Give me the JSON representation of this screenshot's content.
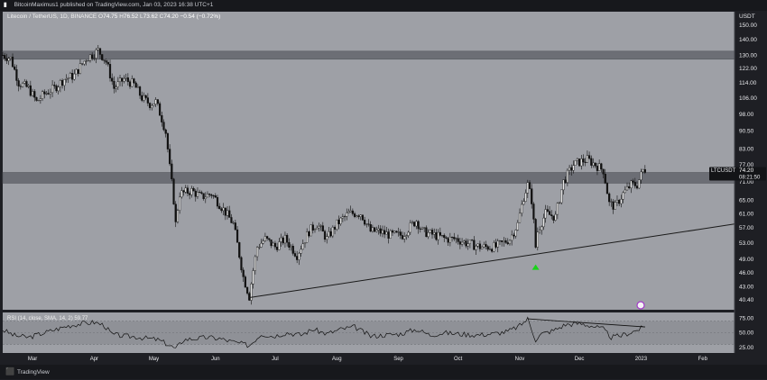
{
  "header": {
    "publisher_line": "BitcoinMaximus1 published on TradingView.com, Jan 03, 2023 16:38 UTC+1"
  },
  "footer": {
    "brand": "TradingView",
    "logo_icon": "tradingview-logo-icon"
  },
  "colors": {
    "plot_bg": "#9ea0a6",
    "border": "#1e1f24",
    "candle": "#111111",
    "zone_fill": "#6c6e75",
    "rsi_band": "#8f9197",
    "arrow": "#19d319",
    "marker": "#a238c8",
    "text": "#e8e9ec"
  },
  "chart_data": [
    {
      "type": "candlestick",
      "symbol_line": "Litecoin / TetherUS, 1D, BINANCE",
      "ohlc": {
        "o_label": "O",
        "o": "74.75",
        "h_label": "H",
        "h": "76.52",
        "l_label": "L",
        "l": "73.62",
        "c_label": "C",
        "c": "74.20",
        "change": "−0.54 (−0.72%)"
      },
      "y_axis": {
        "currency": "USDT",
        "ticks": [
          "150.00",
          "140.00",
          "130.00",
          "122.00",
          "114.00",
          "106.00",
          "98.00",
          "90.50",
          "83.00",
          "77.00",
          "71.00",
          "65.00",
          "61.00",
          "57.00",
          "53.00",
          "49.00",
          "46.00",
          "43.00",
          "40.40"
        ],
        "tick_values": [
          150,
          140,
          130,
          122,
          114,
          106,
          98,
          90.5,
          83,
          77,
          71,
          65,
          61,
          57,
          53,
          49,
          46,
          43,
          40.4
        ],
        "scale": "log",
        "range": [
          38.5,
          160
        ]
      },
      "x_axis": {
        "labels": [
          "Mar",
          "Apr",
          "May",
          "Jun",
          "Jul",
          "Aug",
          "Sep",
          "Oct",
          "Nov",
          "Dec",
          "2023",
          "Feb"
        ],
        "label_dates": [
          "2022-03-01",
          "2022-04-01",
          "2022-05-01",
          "2022-06-01",
          "2022-07-01",
          "2022-08-01",
          "2022-09-01",
          "2022-10-01",
          "2022-11-01",
          "2022-12-01",
          "2023-01-01",
          "2023-02-01"
        ],
        "range": [
          "2022-02-14",
          "2023-02-17"
        ]
      },
      "price_label": {
        "symbol": "LTCUSDT",
        "price": "74.20",
        "countdown": "08:21:50",
        "value": 74.2
      },
      "resistance_zones": [
        {
          "from": 127.5,
          "to": 132.5
        },
        {
          "from": 70.5,
          "to": 74.2
        }
      ],
      "support_line": {
        "start": {
          "date": "2022-06-18",
          "value": 40.8
        },
        "end": {
          "date": "2023-02-17",
          "value": 58.0
        }
      },
      "signal_arrow": {
        "date": "2022-11-09",
        "value": 46.8,
        "direction": "up"
      },
      "price_path": [
        [
          "2022-02-14",
          130
        ],
        [
          "2022-02-18",
          128
        ],
        [
          "2022-02-22",
          114
        ],
        [
          "2022-02-27",
          111
        ],
        [
          "2022-03-03",
          104
        ],
        [
          "2022-03-07",
          108
        ],
        [
          "2022-03-12",
          111
        ],
        [
          "2022-03-17",
          116
        ],
        [
          "2022-03-22",
          118
        ],
        [
          "2022-03-28",
          128
        ],
        [
          "2022-04-01",
          131
        ],
        [
          "2022-04-03",
          133
        ],
        [
          "2022-04-07",
          126
        ],
        [
          "2022-04-11",
          111
        ],
        [
          "2022-04-16",
          116
        ],
        [
          "2022-04-21",
          113
        ],
        [
          "2022-04-25",
          106
        ],
        [
          "2022-04-29",
          103
        ],
        [
          "2022-05-02",
          104
        ],
        [
          "2022-05-05",
          96
        ],
        [
          "2022-05-07",
          90
        ],
        [
          "2022-05-09",
          76
        ],
        [
          "2022-05-11",
          65
        ],
        [
          "2022-05-12",
          58
        ],
        [
          "2022-05-14",
          67
        ],
        [
          "2022-05-20",
          68
        ],
        [
          "2022-05-25",
          66
        ],
        [
          "2022-05-30",
          67
        ],
        [
          "2022-06-04",
          63
        ],
        [
          "2022-06-10",
          58
        ],
        [
          "2022-06-13",
          50
        ],
        [
          "2022-06-15",
          45
        ],
        [
          "2022-06-18",
          41
        ],
        [
          "2022-06-22",
          52
        ],
        [
          "2022-06-26",
          54
        ],
        [
          "2022-07-01",
          52
        ],
        [
          "2022-07-06",
          54
        ],
        [
          "2022-07-12",
          50
        ],
        [
          "2022-07-18",
          56
        ],
        [
          "2022-07-22",
          58
        ],
        [
          "2022-07-27",
          54
        ],
        [
          "2022-08-01",
          58
        ],
        [
          "2022-08-07",
          61
        ],
        [
          "2022-08-13",
          61
        ],
        [
          "2022-08-18",
          56
        ],
        [
          "2022-08-22",
          56
        ],
        [
          "2022-08-28",
          55
        ],
        [
          "2022-09-03",
          55
        ],
        [
          "2022-09-10",
          59
        ],
        [
          "2022-09-13",
          56
        ],
        [
          "2022-09-19",
          55
        ],
        [
          "2022-09-25",
          54
        ],
        [
          "2022-09-30",
          54
        ],
        [
          "2022-10-05",
          53
        ],
        [
          "2022-10-12",
          52
        ],
        [
          "2022-10-20",
          52
        ],
        [
          "2022-10-27",
          54
        ],
        [
          "2022-10-31",
          58
        ],
        [
          "2022-11-03",
          66
        ],
        [
          "2022-11-05",
          70
        ],
        [
          "2022-11-07",
          65
        ],
        [
          "2022-11-09",
          52
        ],
        [
          "2022-11-10",
          56
        ],
        [
          "2022-11-14",
          61
        ],
        [
          "2022-11-19",
          60
        ],
        [
          "2022-11-23",
          71
        ],
        [
          "2022-11-28",
          77
        ],
        [
          "2022-12-01",
          78
        ],
        [
          "2022-12-05",
          79
        ],
        [
          "2022-12-09",
          77
        ],
        [
          "2022-12-13",
          75
        ],
        [
          "2022-12-16",
          64
        ],
        [
          "2022-12-19",
          63
        ],
        [
          "2022-12-23",
          67
        ],
        [
          "2022-12-27",
          70
        ],
        [
          "2022-12-30",
          70
        ],
        [
          "2023-01-02",
          75
        ],
        [
          "2023-01-03",
          74.2
        ]
      ]
    },
    {
      "type": "line",
      "indicator_label": "RSI (14, close, SMA, 14, 2)",
      "indicator_value": "59.77",
      "series": [
        {
          "name": "RSI",
          "points": [
            [
              "2022-02-14",
              55
            ],
            [
              "2022-02-20",
              45
            ],
            [
              "2022-02-27",
              42
            ],
            [
              "2022-03-05",
              48
            ],
            [
              "2022-03-12",
              55
            ],
            [
              "2022-03-19",
              62
            ],
            [
              "2022-03-26",
              66
            ],
            [
              "2022-04-01",
              68
            ],
            [
              "2022-04-06",
              63
            ],
            [
              "2022-04-10",
              47
            ],
            [
              "2022-04-16",
              44
            ],
            [
              "2022-04-22",
              43
            ],
            [
              "2022-04-28",
              40
            ],
            [
              "2022-05-03",
              38
            ],
            [
              "2022-05-08",
              30
            ],
            [
              "2022-05-12",
              22
            ],
            [
              "2022-05-16",
              38
            ],
            [
              "2022-05-22",
              40
            ],
            [
              "2022-05-28",
              42
            ],
            [
              "2022-06-03",
              40
            ],
            [
              "2022-06-10",
              34
            ],
            [
              "2022-06-18",
              28
            ],
            [
              "2022-06-24",
              48
            ],
            [
              "2022-06-30",
              44
            ],
            [
              "2022-07-07",
              50
            ],
            [
              "2022-07-14",
              46
            ],
            [
              "2022-07-20",
              56
            ],
            [
              "2022-07-27",
              48
            ],
            [
              "2022-08-03",
              56
            ],
            [
              "2022-08-10",
              60
            ],
            [
              "2022-08-18",
              44
            ],
            [
              "2022-08-25",
              46
            ],
            [
              "2022-09-02",
              48
            ],
            [
              "2022-09-10",
              56
            ],
            [
              "2022-09-17",
              46
            ],
            [
              "2022-09-24",
              50
            ],
            [
              "2022-10-01",
              48
            ],
            [
              "2022-10-10",
              46
            ],
            [
              "2022-10-18",
              48
            ],
            [
              "2022-10-26",
              52
            ],
            [
              "2022-11-01",
              62
            ],
            [
              "2022-11-05",
              74
            ],
            [
              "2022-11-09",
              38
            ],
            [
              "2022-11-12",
              48
            ],
            [
              "2022-11-18",
              54
            ],
            [
              "2022-11-24",
              64
            ],
            [
              "2022-12-01",
              66
            ],
            [
              "2022-12-07",
              62
            ],
            [
              "2022-12-13",
              56
            ],
            [
              "2022-12-17",
              42
            ],
            [
              "2022-12-22",
              45
            ],
            [
              "2022-12-28",
              52
            ],
            [
              "2023-01-03",
              60
            ]
          ]
        }
      ],
      "levels": {
        "upper": 70,
        "middle": 50,
        "lower": 30
      },
      "y_ticks": [
        "75.00",
        "50.00",
        "25.00"
      ],
      "y_tick_values": [
        75,
        50,
        25
      ],
      "y_range": [
        15,
        85
      ],
      "divergence_line": {
        "start": {
          "date": "2022-11-05",
          "value": 74
        },
        "end": {
          "date": "2023-01-03",
          "value": 60
        }
      }
    }
  ]
}
